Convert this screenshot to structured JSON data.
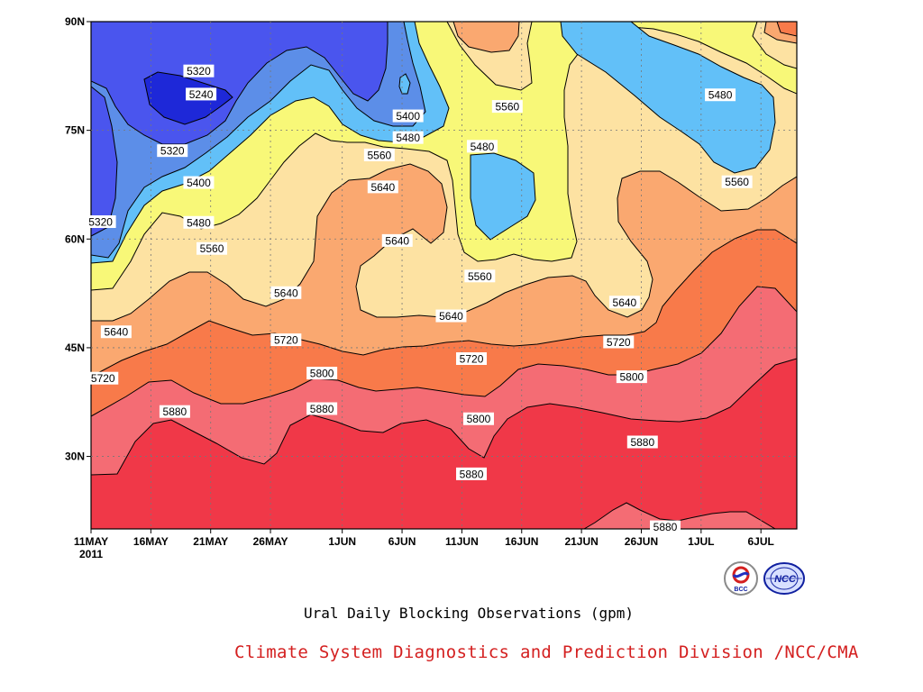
{
  "chart_data": {
    "type": "heatmap",
    "title": "Ural Daily Blocking Observations (gpm)",
    "credit": "Climate System Diagnostics and Prediction Division /NCC/CMA",
    "x_axis": {
      "ticks": [
        "11MAY",
        "16MAY",
        "21MAY",
        "26MAY",
        "1JUN",
        "6JUN",
        "11JUN",
        "16JUN",
        "21JUN",
        "26JUN",
        "1JUL",
        "6JUL"
      ],
      "tick_days": [
        0,
        5,
        10,
        15,
        21,
        26,
        31,
        36,
        41,
        46,
        51,
        56
      ],
      "year_label": "2011",
      "range_days": [
        0,
        59
      ]
    },
    "y_axis": {
      "ticks": [
        "30N",
        "45N",
        "60N",
        "75N",
        "90N"
      ],
      "tick_values": [
        30,
        45,
        60,
        75,
        90
      ],
      "range": [
        20,
        90
      ]
    },
    "grid": "dotted",
    "contour_levels": [
      5240,
      5320,
      5400,
      5480,
      5560,
      5640,
      5720,
      5800,
      5880
    ],
    "fill_colors": [
      "#1e28d8",
      "#4a55ee",
      "#5c8ee8",
      "#62c0f8",
      "#f8f878",
      "#fde2a2",
      "#faa870",
      "#f87a4a",
      "#f46c74",
      "#f03848"
    ],
    "contour_labels": [
      {
        "text": "5320",
        "x": 9.0,
        "y": 83.2
      },
      {
        "text": "5240",
        "x": 9.2,
        "y": 80.0
      },
      {
        "text": "5320",
        "x": 6.8,
        "y": 72.2
      },
      {
        "text": "5400",
        "x": 9.0,
        "y": 67.8
      },
      {
        "text": "5480",
        "x": 9.0,
        "y": 62.3
      },
      {
        "text": "5560",
        "x": 10.1,
        "y": 58.7
      },
      {
        "text": "5320",
        "x": 0.8,
        "y": 62.4
      },
      {
        "text": "5640",
        "x": 2.1,
        "y": 47.2
      },
      {
        "text": "5720",
        "x": 1.0,
        "y": 40.8
      },
      {
        "text": "5640",
        "x": 16.3,
        "y": 52.6
      },
      {
        "text": "5720",
        "x": 16.3,
        "y": 46.1
      },
      {
        "text": "5800",
        "x": 19.3,
        "y": 41.5
      },
      {
        "text": "5880",
        "x": 7.0,
        "y": 36.2
      },
      {
        "text": "5880",
        "x": 19.3,
        "y": 36.6
      },
      {
        "text": "5400",
        "x": 26.5,
        "y": 77.0
      },
      {
        "text": "5480",
        "x": 26.5,
        "y": 74.0
      },
      {
        "text": "5560",
        "x": 24.1,
        "y": 71.6
      },
      {
        "text": "5640",
        "x": 24.4,
        "y": 67.2
      },
      {
        "text": "5640",
        "x": 25.6,
        "y": 59.8
      },
      {
        "text": "5480",
        "x": 32.7,
        "y": 72.8
      },
      {
        "text": "5560",
        "x": 34.8,
        "y": 78.3
      },
      {
        "text": "5560",
        "x": 32.5,
        "y": 54.9
      },
      {
        "text": "5640",
        "x": 30.1,
        "y": 49.4
      },
      {
        "text": "5720",
        "x": 31.8,
        "y": 43.5
      },
      {
        "text": "5800",
        "x": 32.4,
        "y": 35.2
      },
      {
        "text": "5880",
        "x": 31.8,
        "y": 27.6
      },
      {
        "text": "5640",
        "x": 44.6,
        "y": 51.3
      },
      {
        "text": "5720",
        "x": 44.1,
        "y": 45.8
      },
      {
        "text": "5800",
        "x": 45.2,
        "y": 41.0
      },
      {
        "text": "5880",
        "x": 46.1,
        "y": 32.0
      },
      {
        "text": "5880",
        "x": 48.0,
        "y": 20.3
      },
      {
        "text": "5480",
        "x": 52.6,
        "y": 79.9
      },
      {
        "text": "5560",
        "x": 54.0,
        "y": 67.9
      }
    ]
  },
  "logos": {
    "bcc": "BCC",
    "ncc": "NCC"
  }
}
